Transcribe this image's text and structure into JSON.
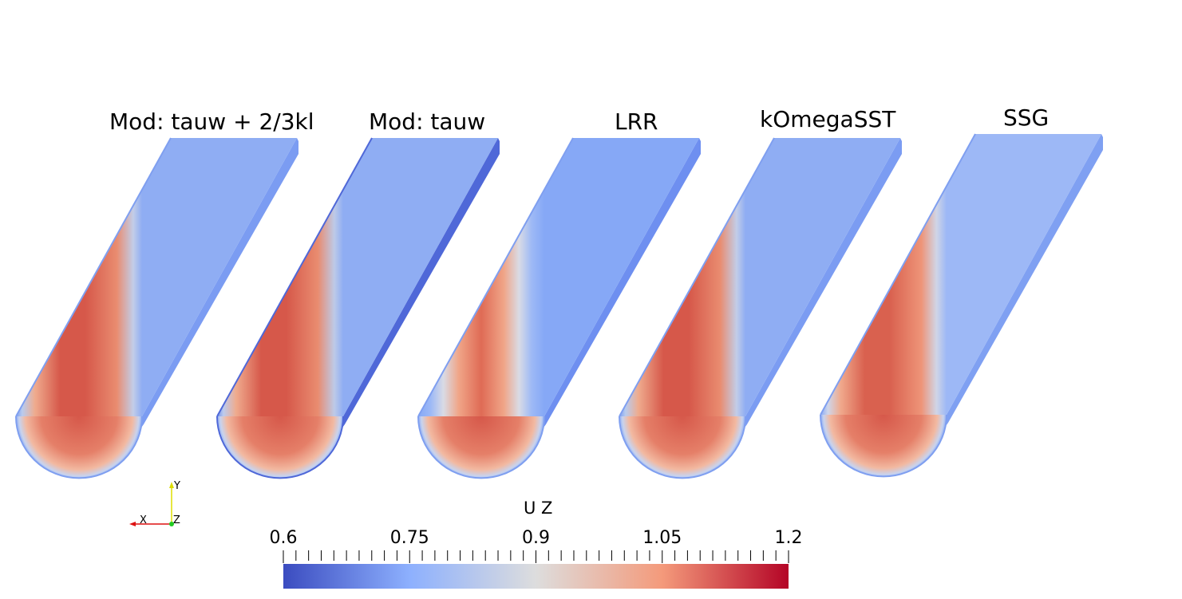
{
  "panels": [
    {
      "title": "Mod: tauw + 2/3kl",
      "variant": "standard"
    },
    {
      "title": "Mod: tauw",
      "variant": "dark-side"
    },
    {
      "title": "LRR",
      "variant": "wide-blue"
    },
    {
      "title": "kOmegaSST",
      "variant": "standard"
    },
    {
      "title": "SSG",
      "variant": "thin"
    }
  ],
  "axes_triad": {
    "x": "X",
    "y": "Y",
    "z": "Z",
    "colors": {
      "x": "#d11",
      "y": "#dd0",
      "z": "#2c2"
    }
  },
  "colorbar": {
    "title": "U Z",
    "min": 0.6,
    "max": 1.2,
    "ticks": [
      "0.6",
      "0.75",
      "0.9",
      "1.05",
      "1.2"
    ],
    "colormap": "Cool to Warm",
    "colors": [
      "#3b4cc0",
      "#8db0fe",
      "#dddddd",
      "#f49a7b",
      "#b40426"
    ]
  }
}
